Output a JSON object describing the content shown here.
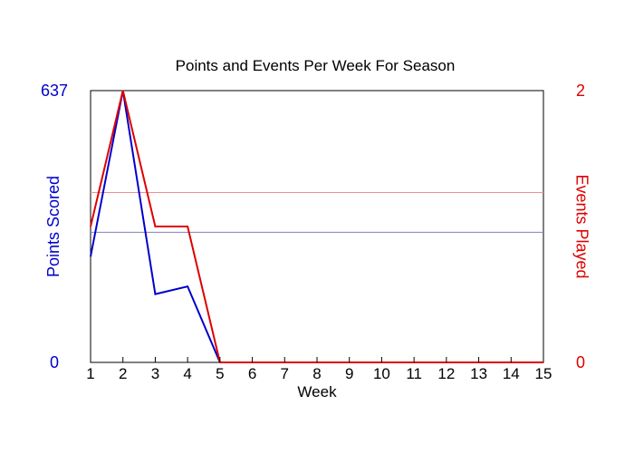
{
  "chart_data": {
    "type": "line",
    "title": "Points and Events Per Week For Season",
    "xlabel": "Week",
    "x": [
      1,
      2,
      3,
      4,
      5,
      6,
      7,
      8,
      9,
      10,
      11,
      12,
      13,
      14,
      15
    ],
    "x_ticks": [
      "1",
      "2",
      "3",
      "4",
      "5",
      "6",
      "7",
      "8",
      "9",
      "10",
      "11",
      "12",
      "13",
      "14",
      "15"
    ],
    "grid": false,
    "y_left": {
      "label": "Points Scored",
      "range": [
        0,
        637
      ],
      "tick_labels": [
        "637",
        "0"
      ],
      "color": "#0000cc",
      "average": 305
    },
    "y_right": {
      "label": "Events Played",
      "range": [
        0,
        2
      ],
      "tick_labels": [
        "2",
        "0"
      ],
      "color": "#dd0000",
      "average": 1.25
    },
    "series": [
      {
        "name": "Points Scored",
        "axis": "left",
        "color": "#0000cc",
        "values": [
          248,
          637,
          160,
          178,
          0,
          0,
          0,
          0,
          0,
          0,
          0,
          0,
          0,
          0,
          0
        ]
      },
      {
        "name": "Events Played",
        "axis": "right",
        "color": "#dd0000",
        "values": [
          1,
          2,
          1,
          1,
          0,
          0,
          0,
          0,
          0,
          0,
          0,
          0,
          0,
          0,
          0
        ]
      }
    ]
  }
}
